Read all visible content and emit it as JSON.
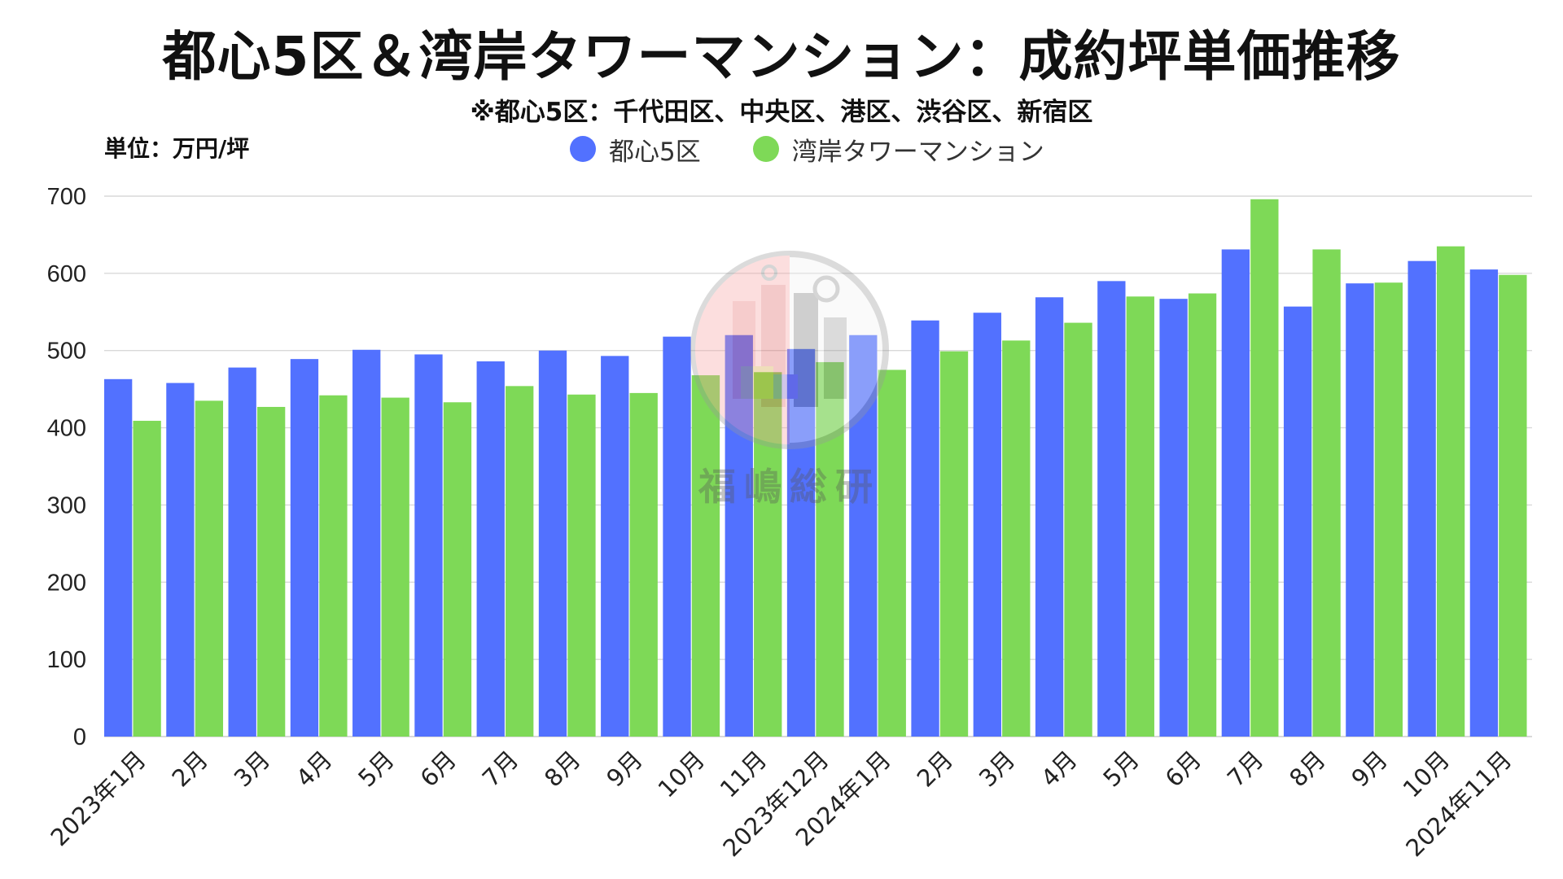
{
  "header": {
    "title": "都心5区＆湾岸タワーマンション：成約坪単価推移",
    "subtitle": "※都心5区：千代田区、中央区、港区、渋谷区、新宿区",
    "unit_label": "単位：万円/坪"
  },
  "watermark": {
    "text": "福嶋総研",
    "icon": "building-logo-icon"
  },
  "colors": {
    "series_1": "#5271FF",
    "series_2": "#7ED957",
    "grid": "#D9D9D9",
    "axis_text": "#222222"
  },
  "chart_data": {
    "type": "bar",
    "title": "都心5区＆湾岸タワーマンション：成約坪単価推移",
    "subtitle": "※都心5区：千代田区、中央区、港区、渋谷区、新宿区",
    "ylabel": "単位：万円/坪",
    "xlabel": "",
    "ylim": [
      0,
      700
    ],
    "yticks": [
      0,
      100,
      200,
      300,
      400,
      500,
      600,
      700
    ],
    "grid": true,
    "legend_position": "top-center",
    "categories": [
      "2023年1月",
      "2月",
      "3月",
      "4月",
      "5月",
      "6月",
      "7月",
      "8月",
      "9月",
      "10月",
      "11月",
      "2023年12月",
      "2024年1月",
      "2月",
      "3月",
      "4月",
      "5月",
      "6月",
      "7月",
      "8月",
      "9月",
      "10月",
      "2024年11月"
    ],
    "series": [
      {
        "name": "都心5区",
        "color": "#5271FF",
        "values": [
          463,
          458,
          478,
          489,
          501,
          495,
          486,
          500,
          493,
          518,
          520,
          502,
          520,
          539,
          549,
          569,
          590,
          567,
          631,
          557,
          587,
          616,
          605
        ]
      },
      {
        "name": "湾岸タワーマンション",
        "color": "#7ED957",
        "values": [
          409,
          435,
          427,
          442,
          439,
          433,
          454,
          443,
          445,
          468,
          472,
          485,
          475,
          499,
          513,
          536,
          570,
          574,
          696,
          631,
          588,
          635,
          598
        ]
      }
    ]
  }
}
